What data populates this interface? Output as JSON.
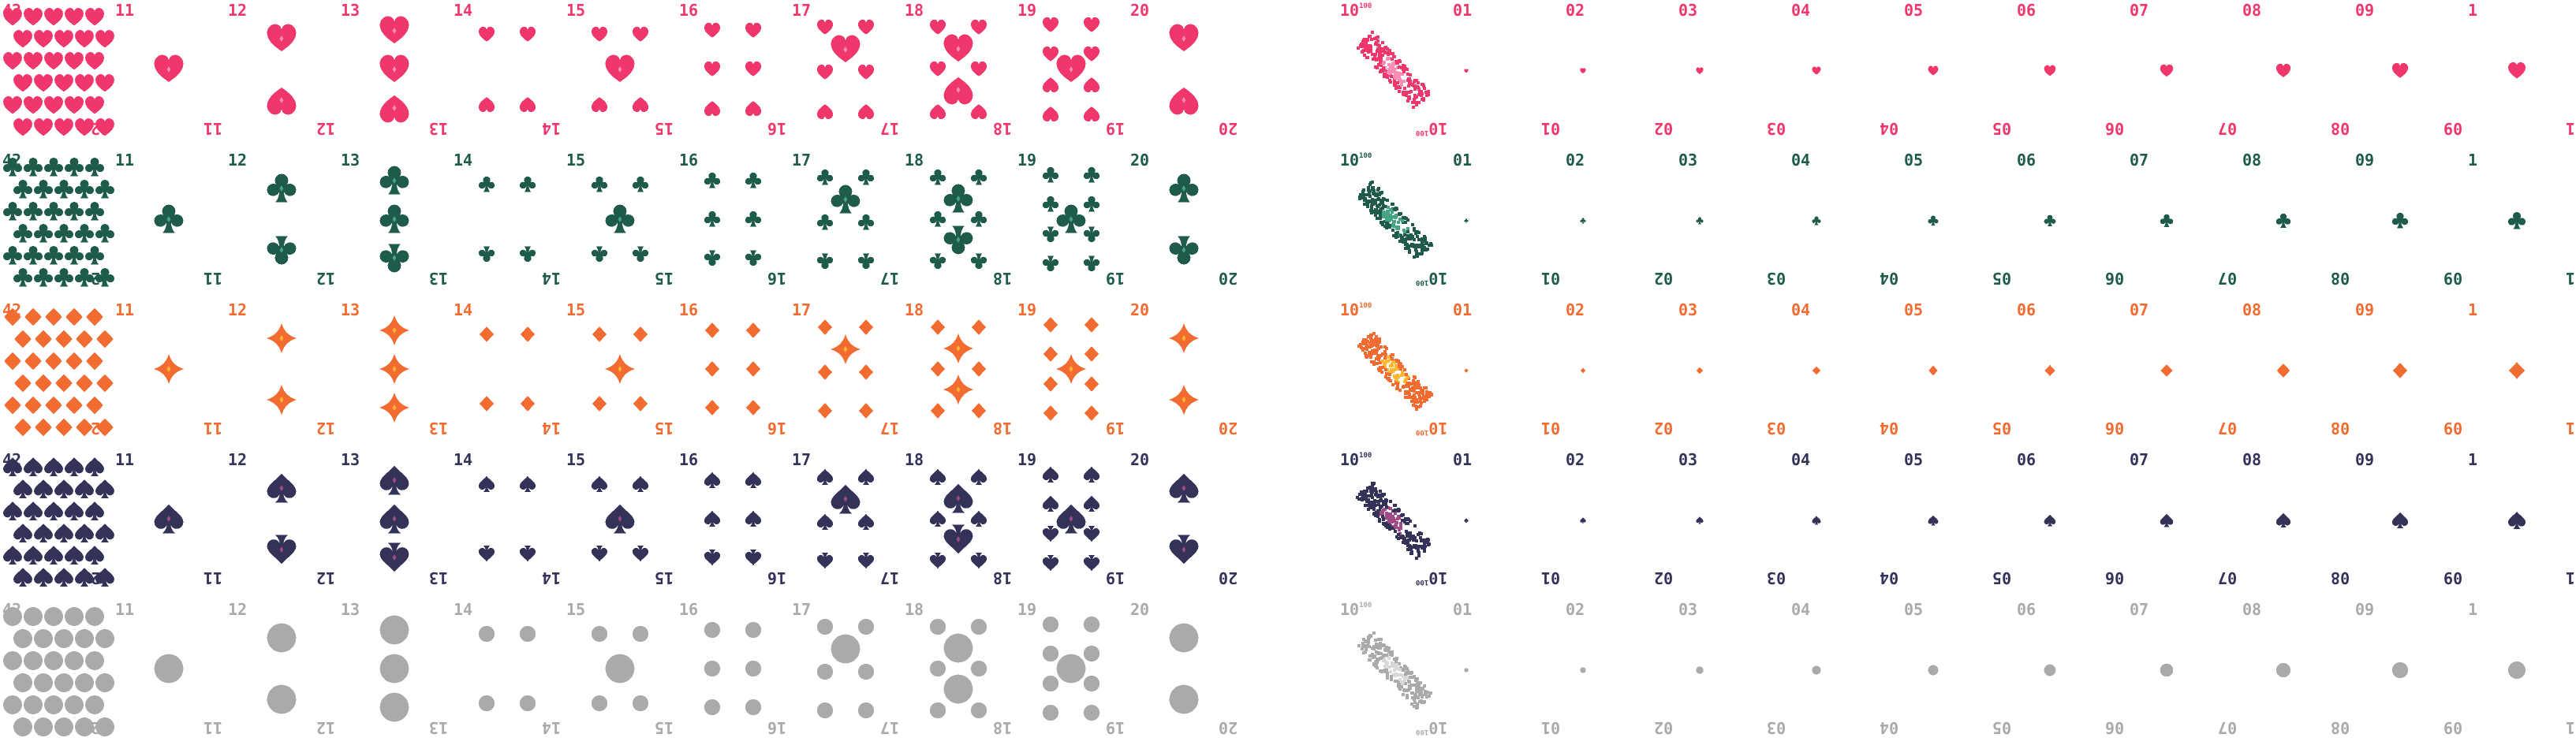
{
  "suits": [
    {
      "name": "hearts",
      "icon": "heart-icon",
      "color": "#f0376b",
      "shade": "#ff8cb5"
    },
    {
      "name": "clubs",
      "icon": "club-icon",
      "color": "#1e5b4c",
      "shade": "#46a485"
    },
    {
      "name": "diamonds",
      "icon": "diamond-icon",
      "color": "#f26b30",
      "shade": "#ffb632"
    },
    {
      "name": "spades",
      "icon": "spade-icon",
      "color": "#33335a",
      "shade": "#a04a88"
    },
    {
      "name": "blank",
      "icon": "circle-icon",
      "color": "#aaaaaa",
      "shade": "#d8d8d8"
    }
  ],
  "left_set": {
    "full_card_rank": "42",
    "ranks": [
      "11",
      "12",
      "13",
      "14",
      "15",
      "16",
      "17",
      "18",
      "19",
      "20"
    ]
  },
  "right_set": {
    "scatter_rank_base": "10",
    "scatter_rank_exp": "100",
    "ranks": [
      "01",
      "02",
      "03",
      "04",
      "05",
      "06",
      "07",
      "08",
      "09",
      "1"
    ]
  }
}
